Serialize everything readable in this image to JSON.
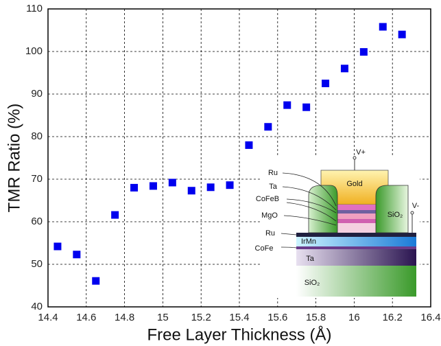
{
  "chart_data": {
    "type": "scatter",
    "x_label": "Free Layer Thickness (Å)",
    "y_label": "TMR Ratio (%)",
    "x": [
      14.45,
      14.55,
      14.65,
      14.75,
      14.85,
      14.95,
      15.05,
      15.15,
      15.25,
      15.35,
      15.45,
      15.55,
      15.65,
      15.75,
      15.85,
      15.95,
      16.05,
      16.15,
      16.25
    ],
    "values": [
      54.2,
      52.3,
      46.1,
      61.6,
      68,
      68.4,
      69.2,
      67.3,
      68.1,
      68.6,
      78,
      82.3,
      87.4,
      86.9,
      92.5,
      96,
      99.9,
      105.8,
      104
    ],
    "color": "#0000ee",
    "xlim": [
      14.4,
      16.4
    ],
    "ylim": [
      40,
      110
    ],
    "xticks": [
      14.4,
      14.6,
      14.8,
      15,
      15.2,
      15.4,
      15.6,
      15.8,
      16,
      16.2,
      16.4
    ],
    "yticks": [
      40,
      50,
      60,
      70,
      80,
      90,
      100,
      110
    ],
    "grid": true,
    "inset_labels": [
      "Ru",
      "Ta",
      "CoFeB",
      "MgO",
      "Ru",
      "CoFe",
      "IrMn",
      "Ta",
      "SiO₂",
      "Gold",
      "SiO₂",
      "V+",
      "V-"
    ]
  }
}
